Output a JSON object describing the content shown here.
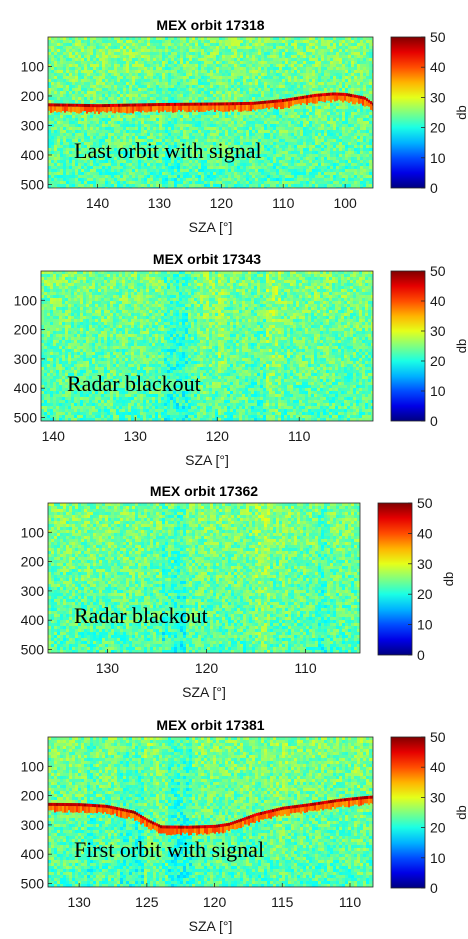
{
  "chart_data": [
    {
      "type": "heatmap",
      "title": "MEX orbit 17318",
      "xlabel": "SZA [°]",
      "ylabel": "",
      "x_reversed": true,
      "xlim": [
        148,
        95.5
      ],
      "x_ticks": [
        140,
        130,
        120,
        110,
        100
      ],
      "ylim": [
        512,
        0
      ],
      "y_ticks": [
        100,
        200,
        300,
        400,
        500
      ],
      "annotation": "Last orbit with signal",
      "colorbar": {
        "label": "db",
        "ticks": [
          0,
          10,
          20,
          30,
          40,
          50
        ],
        "range": [
          0,
          50
        ],
        "colormap": "jet"
      },
      "echo_trace": {
        "sza": [
          148,
          140,
          135,
          130,
          125,
          120,
          115,
          110,
          105,
          102,
          100,
          97,
          95.5
        ],
        "delay": [
          235,
          238,
          236,
          234,
          233,
          232,
          230,
          220,
          203,
          198,
          200,
          212,
          235
        ]
      }
    },
    {
      "type": "heatmap",
      "title": "MEX orbit 17343",
      "xlabel": "SZA [°]",
      "ylabel": "",
      "x_reversed": true,
      "xlim": [
        141.5,
        101
      ],
      "x_ticks": [
        140,
        130,
        120,
        110
      ],
      "ylim": [
        512,
        0
      ],
      "y_ticks": [
        100,
        200,
        300,
        400,
        500
      ],
      "annotation": "Radar blackout",
      "colorbar": {
        "label": "db",
        "ticks": [
          0,
          10,
          20,
          30,
          40,
          50
        ],
        "range": [
          0,
          50
        ],
        "colormap": "jet"
      },
      "echo_trace": null
    },
    {
      "type": "heatmap",
      "title": "MEX orbit 17362",
      "xlabel": "SZA [°]",
      "ylabel": "",
      "x_reversed": true,
      "xlim": [
        136,
        104.5
      ],
      "x_ticks": [
        130,
        120,
        110
      ],
      "ylim": [
        512,
        0
      ],
      "y_ticks": [
        100,
        200,
        300,
        400,
        500
      ],
      "annotation": "Radar blackout",
      "colorbar": {
        "label": "db",
        "ticks": [
          0,
          10,
          20,
          30,
          40,
          50
        ],
        "range": [
          0,
          50
        ],
        "colormap": "jet"
      },
      "echo_trace": null
    },
    {
      "type": "heatmap",
      "title": "MEX orbit 17381",
      "xlabel": "SZA [°]",
      "ylabel": "",
      "x_reversed": true,
      "xlim": [
        132.3,
        108.3
      ],
      "x_ticks": [
        130,
        125,
        120,
        115,
        110
      ],
      "ylim": [
        512,
        0
      ],
      "y_ticks": [
        100,
        200,
        300,
        400,
        500
      ],
      "annotation": "First orbit with signal",
      "colorbar": {
        "label": "db",
        "ticks": [
          0,
          10,
          20,
          30,
          40,
          50
        ],
        "range": [
          0,
          50
        ],
        "colormap": "jet"
      },
      "echo_trace": {
        "sza": [
          132.3,
          130,
          128,
          126,
          125,
          124,
          122,
          120,
          119,
          118,
          117,
          115,
          113,
          111,
          109,
          108.3
        ],
        "delay": [
          235,
          236,
          242,
          262,
          290,
          312,
          313,
          310,
          303,
          287,
          270,
          248,
          236,
          222,
          212,
          210
        ]
      }
    }
  ]
}
